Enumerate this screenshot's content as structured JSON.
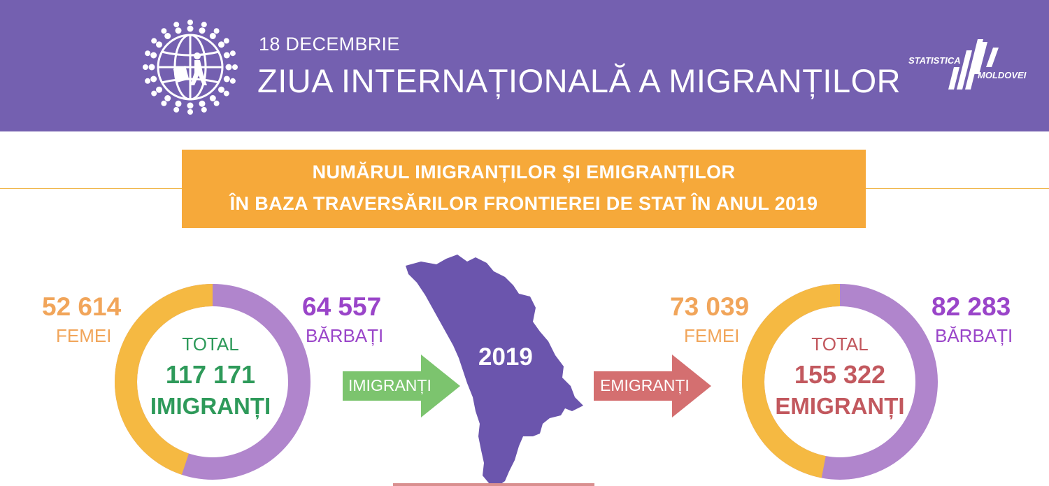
{
  "header": {
    "date": "18 DECEMBRIE",
    "title": "ZIUA INTERNAȚIONALĂ A MIGRANȚILOR",
    "logo_line1": "STATISTICA",
    "logo_line2": "MOLDOVEI",
    "logo_icon": "globe-people-icon"
  },
  "banner": {
    "line1": "NUMĂRUL IMIGRANȚILOR ȘI EMIGRANȚILOR",
    "line2": "ÎN BAZA TRAVERSĂRILOR FRONTIEREI DE STAT ÎN ANUL 2019"
  },
  "colors": {
    "header_bg": "#7460b0",
    "banner_bg": "#f6a93a",
    "female": "#f5b942",
    "male": "#b085cc",
    "female_text": "#f1a55a",
    "male_text": "#9a45c9",
    "imigranti_green": "#2e9a5a",
    "emigranti_red": "#c2585e",
    "arrow_green": "#7cc46e",
    "arrow_red": "#d46f70",
    "map": "#6b55ad"
  },
  "imigranti": {
    "femei_value": "52 614",
    "femei_label": "FEMEI",
    "barbati_value": "64 557",
    "barbati_label": "BĂRBAȚI",
    "total_label": "TOTAL",
    "total_value": "117 171",
    "total_word": "IMIGRANȚI",
    "female_fraction": 0.449,
    "arrow_label": "IMIGRANȚI"
  },
  "emigranti": {
    "femei_value": "73 039",
    "femei_label": "FEMEI",
    "barbati_value": "82 283",
    "barbati_label": "BĂRBAȚI",
    "total_label": "TOTAL",
    "total_value": "155 322",
    "total_word": "EMIGRANȚI",
    "female_fraction": 0.47,
    "arrow_label": "EMIGRANȚI"
  },
  "map": {
    "year": "2019"
  }
}
